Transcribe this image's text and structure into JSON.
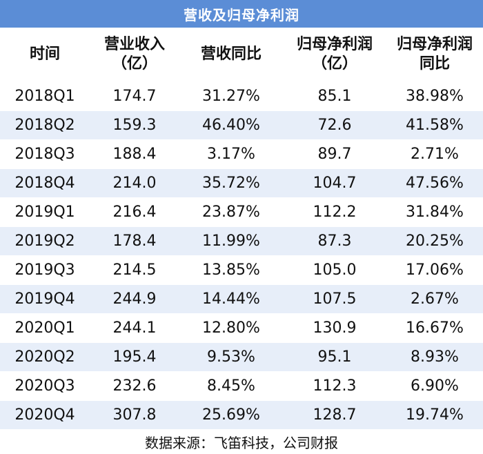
{
  "title": "营收及归母净利润",
  "headers": [
    [
      "时间"
    ],
    [
      "营业收入",
      "（亿）"
    ],
    [
      "营收同比"
    ],
    [
      "归母净利润",
      "（亿）"
    ],
    [
      "归母净利润",
      "同比"
    ]
  ],
  "rows": [
    [
      "2018Q1",
      "174.7",
      "31.27%",
      "85.1",
      "38.98%"
    ],
    [
      "2018Q2",
      "159.3",
      "46.40%",
      "72.6",
      "41.58%"
    ],
    [
      "2018Q3",
      "188.4",
      "3.17%",
      "89.7",
      "2.71%"
    ],
    [
      "2018Q4",
      "214.0",
      "35.72%",
      "104.7",
      "47.56%"
    ],
    [
      "2019Q1",
      "216.4",
      "23.87%",
      "112.2",
      "31.84%"
    ],
    [
      "2019Q2",
      "178.4",
      "11.99%",
      "87.3",
      "20.25%"
    ],
    [
      "2019Q3",
      "214.5",
      "13.85%",
      "105.0",
      "17.06%"
    ],
    [
      "2019Q4",
      "244.9",
      "14.44%",
      "107.5",
      "2.67%"
    ],
    [
      "2020Q1",
      "244.1",
      "12.80%",
      "130.9",
      "16.67%"
    ],
    [
      "2020Q2",
      "195.4",
      "9.53%",
      "95.1",
      "8.93%"
    ],
    [
      "2020Q3",
      "232.6",
      "8.45%",
      "112.3",
      "6.90%"
    ],
    [
      "2020Q4",
      "307.8",
      "25.69%",
      "128.7",
      "19.74%"
    ]
  ],
  "source": "数据来源：飞笛科技，公司财报",
  "colors": {
    "title_bg": "#5b8dd6",
    "stripe": "#e7eef9"
  }
}
